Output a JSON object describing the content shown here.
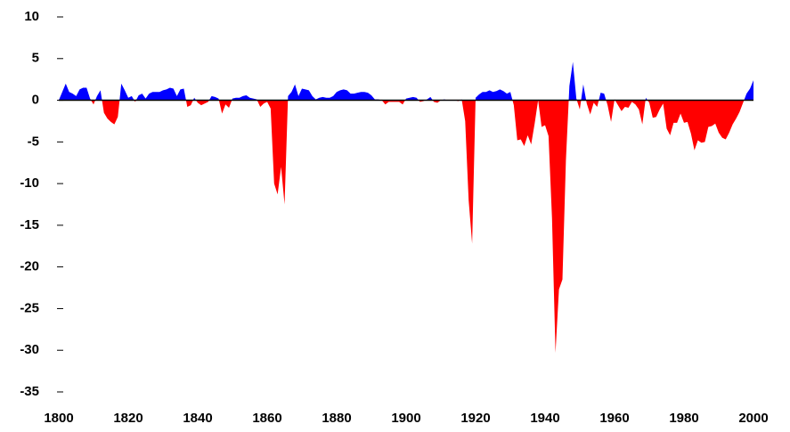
{
  "chart_data": {
    "type": "area",
    "x": [
      1800,
      1801,
      1802,
      1803,
      1804,
      1805,
      1806,
      1807,
      1808,
      1809,
      1810,
      1811,
      1812,
      1813,
      1814,
      1815,
      1816,
      1817,
      1818,
      1819,
      1820,
      1821,
      1822,
      1823,
      1824,
      1825,
      1826,
      1827,
      1828,
      1829,
      1830,
      1831,
      1832,
      1833,
      1834,
      1835,
      1836,
      1837,
      1838,
      1839,
      1840,
      1841,
      1842,
      1843,
      1844,
      1845,
      1846,
      1847,
      1848,
      1849,
      1850,
      1851,
      1852,
      1853,
      1854,
      1855,
      1856,
      1857,
      1858,
      1859,
      1860,
      1861,
      1862,
      1863,
      1864,
      1865,
      1866,
      1867,
      1868,
      1869,
      1870,
      1871,
      1872,
      1873,
      1874,
      1875,
      1876,
      1877,
      1878,
      1879,
      1880,
      1881,
      1882,
      1883,
      1884,
      1885,
      1886,
      1887,
      1888,
      1889,
      1890,
      1891,
      1892,
      1893,
      1894,
      1895,
      1896,
      1897,
      1898,
      1899,
      1900,
      1901,
      1902,
      1903,
      1904,
      1905,
      1906,
      1907,
      1908,
      1909,
      1910,
      1911,
      1912,
      1913,
      1914,
      1915,
      1916,
      1917,
      1918,
      1919,
      1920,
      1921,
      1922,
      1923,
      1924,
      1925,
      1926,
      1927,
      1928,
      1929,
      1930,
      1931,
      1932,
      1933,
      1934,
      1935,
      1936,
      1937,
      1938,
      1939,
      1940,
      1941,
      1942,
      1943,
      1944,
      1945,
      1946,
      1947,
      1948,
      1949,
      1950,
      1951,
      1952,
      1953,
      1954,
      1955,
      1956,
      1957,
      1958,
      1959,
      1960,
      1961,
      1962,
      1963,
      1964,
      1965,
      1966,
      1967,
      1968,
      1969,
      1970,
      1971,
      1972,
      1973,
      1974,
      1975,
      1976,
      1977,
      1978,
      1979,
      1980,
      1981,
      1982,
      1983,
      1984,
      1985,
      1986,
      1987,
      1988,
      1989,
      1990,
      1991,
      1992,
      1993,
      1994,
      1995,
      1996,
      1997,
      1998,
      1999,
      2000
    ],
    "values": [
      0,
      1,
      2,
      1,
      0.8,
      0.5,
      1.3,
      1.5,
      1.5,
      0.2,
      -0.5,
      0.5,
      1.2,
      -1.5,
      -2.2,
      -2.6,
      -2.9,
      -2,
      2,
      1.2,
      0.3,
      0.5,
      -0.2,
      0.6,
      0.8,
      0.2,
      0.8,
      1,
      1,
      1,
      1.2,
      1.3,
      1.5,
      1.4,
      0.5,
      1.3,
      1.4,
      -0.8,
      -0.6,
      0.3,
      -0.3,
      -0.6,
      -0.4,
      -0.2,
      0.5,
      0.4,
      0.2,
      -1.6,
      -0.5,
      -0.9,
      0.2,
      0.3,
      0.3,
      0.5,
      0.6,
      0.3,
      0.2,
      0.1,
      -0.8,
      -0.4,
      -0.2,
      -1,
      -10,
      -11.3,
      -8,
      -12.5,
      0.5,
      1,
      1.9,
      0.5,
      1.4,
      1.3,
      1.2,
      0.5,
      0.1,
      0.3,
      0.4,
      0.3,
      0.3,
      0.5,
      1,
      1.2,
      1.3,
      1.2,
      0.8,
      0.8,
      0.9,
      1,
      1,
      0.9,
      0.6,
      0.1,
      0.1,
      0,
      -0.5,
      -0.2,
      -0.2,
      -0.2,
      -0.2,
      -0.5,
      0.2,
      0.3,
      0.4,
      0.3,
      -0.2,
      -0.1,
      0.1,
      0.4,
      -0.2,
      -0.3,
      0,
      0.1,
      0,
      0,
      0,
      -0.1,
      0.1,
      -2.5,
      -12,
      -17.2,
      0.3,
      0.7,
      1,
      1,
      1.2,
      1,
      1.1,
      1.3,
      1.1,
      0.8,
      1,
      -0.6,
      -4.8,
      -4.7,
      -5.5,
      -4.2,
      -5.3,
      -2.8,
      0,
      -3.2,
      -3,
      -4.3,
      -14.2,
      -30.3,
      -22.7,
      -21.5,
      -7.2,
      1.7,
      4.6,
      0.2,
      -1.1,
      1.9,
      -0.4,
      -1.7,
      -0.3,
      -0.8,
      0.9,
      0.8,
      -0.6,
      -2.6,
      0.1,
      -0.6,
      -1.3,
      -0.8,
      -0.9,
      -0.2,
      -0.5,
      -1.1,
      -2.9,
      0.3,
      -0.3,
      -2.1,
      -2,
      -1.1,
      -0.4,
      -3.4,
      -4.2,
      -2.7,
      -2.7,
      -1.6,
      -2.7,
      -2.6,
      -4,
      -6,
      -4.8,
      -5.1,
      -5,
      -3.2,
      -3.1,
      -2.8,
      -3.9,
      -4.5,
      -4.7,
      -3.9,
      -2.9,
      -2.2,
      -1.4,
      -0.3,
      0.8,
      1.4,
      2.4
    ],
    "color": "#0000ff",
    "negative_color": "#ff0000",
    "xlim": [
      1800,
      2000
    ],
    "xticks": [
      1800,
      1820,
      1840,
      1860,
      1880,
      1900,
      1920,
      1940,
      1960,
      1980,
      2000
    ],
    "ylim": [
      -35,
      10
    ],
    "yticks": [
      10,
      5,
      0,
      -5,
      -10,
      -15,
      -20,
      -25,
      -30,
      -35
    ]
  }
}
